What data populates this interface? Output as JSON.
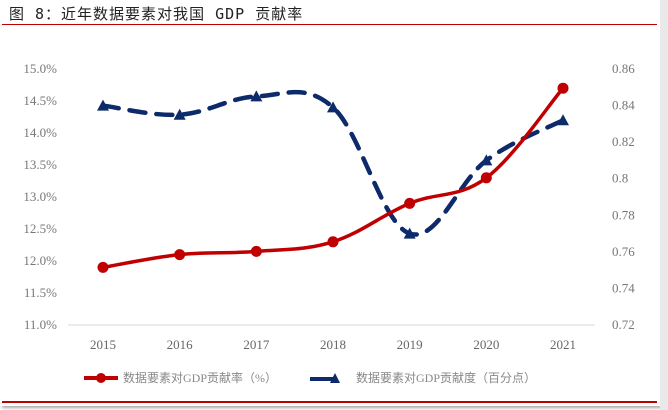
{
  "figure": {
    "title": "图 8：近年数据要素对我国 GDP 贡献率"
  },
  "colors": {
    "series1": "#c00000",
    "series2": "#0d2a6b",
    "accent_rule": "#c00000",
    "tick_text": "#777777",
    "axis_line": "#d9d9d9"
  },
  "chart_data": {
    "type": "line",
    "title": "图 8：近年数据要素对我国 GDP 贡献率",
    "x": [
      "2015",
      "2016",
      "2017",
      "2018",
      "2019",
      "2020",
      "2021"
    ],
    "series": [
      {
        "name": "数据要素对GDP贡献率（%）",
        "axis": "left",
        "style": "solid line with circle markers",
        "color": "#c00000",
        "values": [
          11.9,
          12.1,
          12.15,
          12.3,
          12.9,
          13.3,
          14.7
        ]
      },
      {
        "name": "数据要素对GDP贡献度（百分点）",
        "axis": "right",
        "style": "dashed line with triangle markers",
        "color": "#0d2a6b",
        "values": [
          0.84,
          0.835,
          0.845,
          0.839,
          0.77,
          0.81,
          0.832
        ]
      }
    ],
    "left_axis": {
      "ylim": [
        11.0,
        15.0
      ],
      "ticks": [
        "15.0%",
        "14.5%",
        "14.0%",
        "13.5%",
        "13.0%",
        "12.5%",
        "12.0%",
        "11.5%",
        "11.0%"
      ]
    },
    "right_axis": {
      "ylim": [
        0.72,
        0.86
      ],
      "ticks": [
        "0.86",
        "0.84",
        "0.82",
        "0.8",
        "0.78",
        "0.76",
        "0.74",
        "0.72"
      ]
    },
    "xlabel": "",
    "ylabel": "",
    "grid": false,
    "legend_position": "bottom"
  },
  "legend": {
    "item1": "数据要素对GDP贡献率（%）",
    "item2": "数据要素对GDP贡献度（百分点）"
  }
}
